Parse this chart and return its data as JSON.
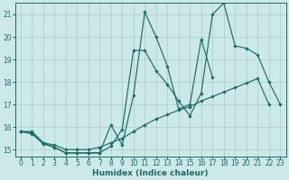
{
  "xlabel": "Humidex (Indice chaleur)",
  "background_color": "#cde8e8",
  "grid_color": "#aacccc",
  "line_color": "#1a6b6b",
  "xlim": [
    -0.5,
    23.5
  ],
  "ylim": [
    14.7,
    21.5
  ],
  "yticks": [
    15,
    16,
    17,
    18,
    19,
    20,
    21
  ],
  "xticks": [
    0,
    1,
    2,
    3,
    4,
    5,
    6,
    7,
    8,
    9,
    10,
    11,
    12,
    13,
    14,
    15,
    16,
    17,
    18,
    19,
    20,
    21,
    22,
    23
  ],
  "line1_x": [
    0,
    1,
    2,
    3,
    4,
    5,
    6,
    7,
    8,
    9,
    10,
    11,
    12,
    13,
    14,
    15,
    16,
    17,
    18,
    19,
    20,
    21,
    22,
    23
  ],
  "line1_y": [
    15.8,
    15.8,
    15.3,
    15.1,
    14.85,
    14.85,
    14.85,
    14.85,
    16.1,
    15.2,
    17.4,
    21.1,
    20.0,
    18.7,
    16.8,
    17.0,
    19.9,
    18.2,
    null,
    null,
    null,
    null,
    null,
    null
  ],
  "line2_x": [
    0,
    1,
    2,
    3,
    4,
    5,
    6,
    7,
    8,
    9,
    10,
    11,
    12,
    13,
    14,
    15,
    16,
    17,
    18,
    19,
    20,
    21,
    22,
    23
  ],
  "line2_y": [
    15.8,
    15.7,
    15.25,
    15.1,
    14.85,
    14.85,
    14.85,
    14.85,
    15.15,
    15.9,
    19.4,
    19.4,
    18.5,
    17.9,
    17.15,
    16.5,
    17.5,
    21.0,
    21.5,
    19.6,
    19.5,
    19.2,
    18.0,
    17.0
  ],
  "line3_x": [
    0,
    1,
    2,
    3,
    4,
    5,
    6,
    7,
    8,
    9,
    10,
    11,
    12,
    13,
    14,
    15,
    16,
    17,
    18,
    19,
    20,
    21,
    22,
    23
  ],
  "line3_y": [
    15.8,
    15.75,
    15.3,
    15.2,
    15.0,
    15.0,
    15.0,
    15.1,
    15.3,
    15.5,
    15.8,
    16.1,
    16.35,
    16.55,
    16.75,
    16.9,
    17.15,
    17.35,
    17.55,
    17.75,
    17.95,
    18.15,
    17.0,
    null
  ]
}
